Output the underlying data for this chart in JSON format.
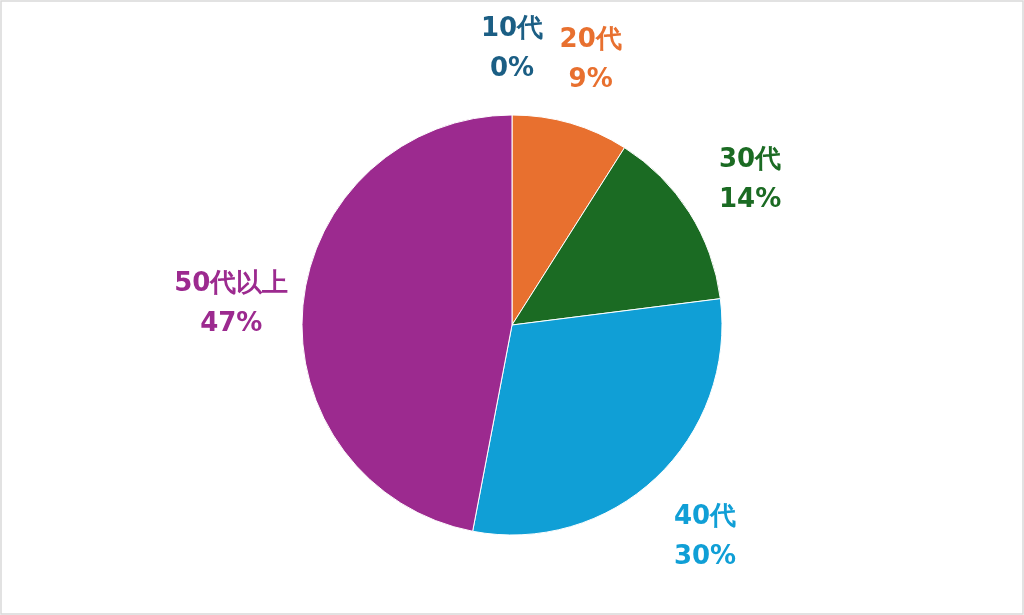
{
  "chart_data": {
    "type": "pie",
    "categories": [
      "10代",
      "20代",
      "30代",
      "40代",
      "50代以上"
    ],
    "values": [
      0,
      9,
      14,
      30,
      47
    ],
    "colors": [
      "#1b5e84",
      "#e8702f",
      "#1b6b23",
      "#109fd6",
      "#9c2a8f"
    ],
    "value_labels": [
      "0%",
      "9%",
      "14%",
      "30%",
      "47%"
    ]
  }
}
